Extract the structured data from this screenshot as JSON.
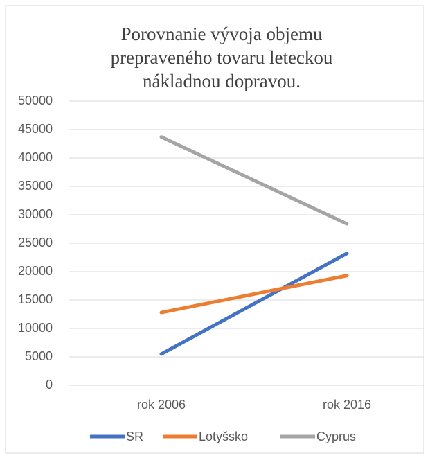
{
  "chart_data": {
    "type": "line",
    "title": "Porovnanie vývoja objemu prepraveného tovaru leteckou nákladnou dopravou.",
    "categories": [
      "rok 2006",
      "rok 2016"
    ],
    "series": [
      {
        "name": "SR",
        "color": "#4472c4",
        "values": [
          5500,
          23200
        ]
      },
      {
        "name": "Lotyšsko",
        "color": "#ed7d31",
        "values": [
          12800,
          19300
        ]
      },
      {
        "name": "Cyprus",
        "color": "#a5a5a5",
        "values": [
          43700,
          28400
        ]
      }
    ],
    "ylim": [
      0,
      50000
    ],
    "yticks": [
      0,
      5000,
      10000,
      15000,
      20000,
      25000,
      30000,
      35000,
      40000,
      45000,
      50000
    ],
    "grid": true,
    "legend": "bottom"
  }
}
